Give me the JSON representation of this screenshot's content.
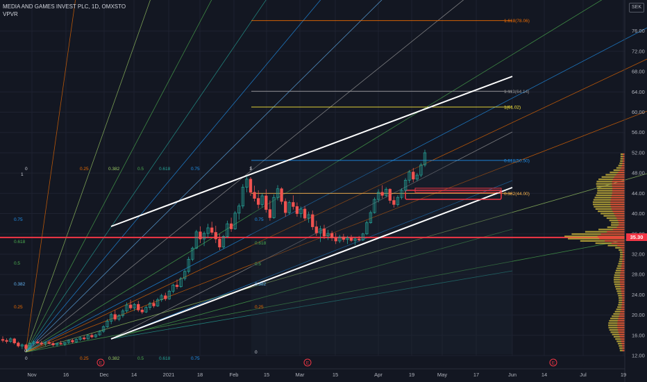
{
  "header": {
    "title": "MEDIA AND GAMES INVEST PLC, 1D, OMXSTO",
    "indicator": "VPVR",
    "currency": "SEK"
  },
  "last_price_label": "35.30",
  "colors": {
    "background": "#131722",
    "up": "#26a69a",
    "down": "#ef5350",
    "channel": "#ffffff",
    "support_line": "#f23645"
  },
  "chart_data": {
    "type": "candlestick",
    "y_axis": {
      "ticks": [
        "12.00",
        "16.00",
        "20.00",
        "24.00",
        "28.00",
        "32.00",
        "36.00",
        "40.00",
        "44.00",
        "48.00",
        "52.00",
        "56.00",
        "60.00",
        "64.00",
        "68.00",
        "72.00",
        "76.00"
      ],
      "range": [
        12,
        80
      ]
    },
    "x_axis": {
      "ticks": [
        "Nov",
        "16",
        "Dec",
        "14",
        "2021",
        "18",
        "Feb",
        "15",
        "Mar",
        "15",
        "Apr",
        "19",
        "May",
        "17",
        "Jun",
        "14",
        "Jul",
        "19"
      ]
    },
    "fib_levels": [
      {
        "label": "1.618(78.06)",
        "value": 78.06,
        "color": "#ef6c00"
      },
      {
        "label": "1.113(64.14)",
        "value": 64.14,
        "color": "#9e9e9e"
      },
      {
        "label": "1(61.02)",
        "value": 61.02,
        "color": "#ffeb3b"
      },
      {
        "label": "0.618(50.50)",
        "value": 50.5,
        "color": "#2196f3"
      },
      {
        "label": "0.382(44.00)",
        "value": 44.0,
        "color": "#ffb74d"
      }
    ],
    "gann_fan_left_labels": [
      "1",
      "0.75",
      "0.618",
      "0.5",
      "0.382",
      "0.25",
      "0"
    ],
    "gann_fan_top_labels": [
      "0",
      "0.25",
      "0.382",
      "0.5",
      "0.618",
      "0.75",
      "1"
    ],
    "gann_fan_bottom_labels": [
      "0",
      "0.25",
      "0.382",
      "0.5",
      "0.618",
      "0.75"
    ],
    "inner_box_labels": [
      "1",
      "0.75",
      "0.618",
      "0.5",
      "0.382",
      "0.25",
      "0"
    ],
    "horizontal_line": {
      "value": 35.3,
      "label": "35.30"
    },
    "earnings_markers": [
      "E",
      "E",
      "E",
      "E"
    ],
    "candles": [
      {
        "o": 15.2,
        "h": 15.8,
        "l": 14.6,
        "c": 15.0
      },
      {
        "o": 15.0,
        "h": 15.4,
        "l": 14.4,
        "c": 14.8
      },
      {
        "o": 14.8,
        "h": 15.6,
        "l": 14.5,
        "c": 15.3
      },
      {
        "o": 15.3,
        "h": 15.5,
        "l": 14.2,
        "c": 14.5
      },
      {
        "o": 14.5,
        "h": 14.8,
        "l": 13.6,
        "c": 13.9
      },
      {
        "o": 13.9,
        "h": 14.4,
        "l": 13.3,
        "c": 14.1
      },
      {
        "o": 14.1,
        "h": 14.3,
        "l": 13.0,
        "c": 13.4
      },
      {
        "o": 13.4,
        "h": 14.6,
        "l": 13.2,
        "c": 14.4
      },
      {
        "o": 14.4,
        "h": 15.0,
        "l": 14.0,
        "c": 14.7
      },
      {
        "o": 14.7,
        "h": 15.2,
        "l": 14.3,
        "c": 14.5
      },
      {
        "o": 14.5,
        "h": 14.9,
        "l": 14.0,
        "c": 14.3
      },
      {
        "o": 14.3,
        "h": 14.8,
        "l": 13.9,
        "c": 14.6
      },
      {
        "o": 14.6,
        "h": 15.0,
        "l": 14.2,
        "c": 14.4
      },
      {
        "o": 14.4,
        "h": 14.7,
        "l": 13.8,
        "c": 14.1
      },
      {
        "o": 14.1,
        "h": 14.6,
        "l": 13.8,
        "c": 14.4
      },
      {
        "o": 14.4,
        "h": 14.9,
        "l": 14.1,
        "c": 14.3
      },
      {
        "o": 14.3,
        "h": 14.7,
        "l": 13.9,
        "c": 14.6
      },
      {
        "o": 14.6,
        "h": 15.2,
        "l": 14.3,
        "c": 15.0
      },
      {
        "o": 15.0,
        "h": 15.3,
        "l": 14.4,
        "c": 14.7
      },
      {
        "o": 14.7,
        "h": 15.4,
        "l": 14.5,
        "c": 15.2
      },
      {
        "o": 15.2,
        "h": 15.8,
        "l": 14.9,
        "c": 15.5
      },
      {
        "o": 15.5,
        "h": 16.0,
        "l": 15.0,
        "c": 15.3
      },
      {
        "o": 15.3,
        "h": 16.2,
        "l": 15.1,
        "c": 16.0
      },
      {
        "o": 16.0,
        "h": 16.4,
        "l": 15.4,
        "c": 15.7
      },
      {
        "o": 15.7,
        "h": 16.3,
        "l": 15.5,
        "c": 16.1
      },
      {
        "o": 16.1,
        "h": 17.0,
        "l": 15.9,
        "c": 16.8
      },
      {
        "o": 16.8,
        "h": 18.0,
        "l": 16.5,
        "c": 17.7
      },
      {
        "o": 17.7,
        "h": 19.2,
        "l": 17.5,
        "c": 18.8
      },
      {
        "o": 18.8,
        "h": 20.5,
        "l": 18.2,
        "c": 20.1
      },
      {
        "o": 20.1,
        "h": 21.0,
        "l": 18.8,
        "c": 19.2
      },
      {
        "o": 19.2,
        "h": 20.2,
        "l": 18.8,
        "c": 19.9
      },
      {
        "o": 19.9,
        "h": 21.2,
        "l": 19.5,
        "c": 20.8
      },
      {
        "o": 20.8,
        "h": 22.5,
        "l": 20.5,
        "c": 22.0
      },
      {
        "o": 22.0,
        "h": 23.0,
        "l": 21.0,
        "c": 21.4
      },
      {
        "o": 21.4,
        "h": 22.4,
        "l": 20.8,
        "c": 22.1
      },
      {
        "o": 22.1,
        "h": 22.8,
        "l": 20.6,
        "c": 21.0
      },
      {
        "o": 21.0,
        "h": 21.6,
        "l": 20.2,
        "c": 20.6
      },
      {
        "o": 20.6,
        "h": 21.8,
        "l": 20.4,
        "c": 21.5
      },
      {
        "o": 21.5,
        "h": 22.6,
        "l": 21.0,
        "c": 22.3
      },
      {
        "o": 22.3,
        "h": 23.0,
        "l": 21.4,
        "c": 21.8
      },
      {
        "o": 21.8,
        "h": 23.4,
        "l": 21.6,
        "c": 23.0
      },
      {
        "o": 23.0,
        "h": 24.2,
        "l": 22.6,
        "c": 23.8
      },
      {
        "o": 23.8,
        "h": 24.4,
        "l": 22.8,
        "c": 23.2
      },
      {
        "o": 23.2,
        "h": 25.0,
        "l": 23.0,
        "c": 24.7
      },
      {
        "o": 24.7,
        "h": 26.2,
        "l": 24.3,
        "c": 25.9
      },
      {
        "o": 25.9,
        "h": 27.0,
        "l": 25.1,
        "c": 25.6
      },
      {
        "o": 25.6,
        "h": 27.5,
        "l": 25.4,
        "c": 27.2
      },
      {
        "o": 27.2,
        "h": 29.0,
        "l": 26.8,
        "c": 28.6
      },
      {
        "o": 28.6,
        "h": 31.5,
        "l": 28.2,
        "c": 31.0
      },
      {
        "o": 31.0,
        "h": 33.5,
        "l": 30.6,
        "c": 33.2
      },
      {
        "o": 33.2,
        "h": 36.8,
        "l": 33.0,
        "c": 36.4
      },
      {
        "o": 36.4,
        "h": 37.5,
        "l": 34.2,
        "c": 35.0
      },
      {
        "o": 35.0,
        "h": 36.5,
        "l": 33.6,
        "c": 36.1
      },
      {
        "o": 36.1,
        "h": 38.0,
        "l": 35.2,
        "c": 37.2
      },
      {
        "o": 37.2,
        "h": 38.4,
        "l": 35.8,
        "c": 36.3
      },
      {
        "o": 36.3,
        "h": 37.6,
        "l": 34.2,
        "c": 35.0
      },
      {
        "o": 35.0,
        "h": 36.0,
        "l": 32.8,
        "c": 33.4
      },
      {
        "o": 33.4,
        "h": 35.8,
        "l": 33.0,
        "c": 35.5
      },
      {
        "o": 35.5,
        "h": 38.6,
        "l": 35.2,
        "c": 38.0
      },
      {
        "o": 38.0,
        "h": 39.2,
        "l": 36.4,
        "c": 37.0
      },
      {
        "o": 37.0,
        "h": 40.5,
        "l": 36.8,
        "c": 40.1
      },
      {
        "o": 40.1,
        "h": 42.0,
        "l": 38.8,
        "c": 41.5
      },
      {
        "o": 41.5,
        "h": 45.8,
        "l": 41.0,
        "c": 45.2
      },
      {
        "o": 45.2,
        "h": 47.4,
        "l": 44.2,
        "c": 46.8
      },
      {
        "o": 46.8,
        "h": 47.2,
        "l": 43.5,
        "c": 44.2
      },
      {
        "o": 44.2,
        "h": 45.5,
        "l": 42.4,
        "c": 43.0
      },
      {
        "o": 43.0,
        "h": 44.6,
        "l": 41.0,
        "c": 41.8
      },
      {
        "o": 41.8,
        "h": 44.0,
        "l": 41.2,
        "c": 43.5
      },
      {
        "o": 43.5,
        "h": 44.8,
        "l": 40.2,
        "c": 40.8
      },
      {
        "o": 40.8,
        "h": 42.6,
        "l": 38.6,
        "c": 39.2
      },
      {
        "o": 39.2,
        "h": 43.8,
        "l": 39.0,
        "c": 43.2
      },
      {
        "o": 43.2,
        "h": 45.6,
        "l": 42.6,
        "c": 44.9
      },
      {
        "o": 44.9,
        "h": 45.2,
        "l": 41.8,
        "c": 42.4
      },
      {
        "o": 42.4,
        "h": 43.0,
        "l": 39.4,
        "c": 40.2
      },
      {
        "o": 40.2,
        "h": 42.6,
        "l": 39.8,
        "c": 42.2
      },
      {
        "o": 42.2,
        "h": 43.6,
        "l": 40.8,
        "c": 41.4
      },
      {
        "o": 41.4,
        "h": 42.2,
        "l": 39.4,
        "c": 40.0
      },
      {
        "o": 40.0,
        "h": 41.4,
        "l": 39.2,
        "c": 40.9
      },
      {
        "o": 40.9,
        "h": 41.5,
        "l": 38.6,
        "c": 39.1
      },
      {
        "o": 39.1,
        "h": 40.4,
        "l": 38.2,
        "c": 39.8
      },
      {
        "o": 39.8,
        "h": 40.6,
        "l": 36.8,
        "c": 37.4
      },
      {
        "o": 37.4,
        "h": 38.6,
        "l": 35.6,
        "c": 36.2
      },
      {
        "o": 36.2,
        "h": 37.6,
        "l": 34.4,
        "c": 37.0
      },
      {
        "o": 37.0,
        "h": 37.8,
        "l": 35.0,
        "c": 35.6
      },
      {
        "o": 35.6,
        "h": 36.8,
        "l": 34.8,
        "c": 36.1
      },
      {
        "o": 36.1,
        "h": 36.6,
        "l": 34.6,
        "c": 35.2
      },
      {
        "o": 35.2,
        "h": 36.2,
        "l": 34.0,
        "c": 34.6
      },
      {
        "o": 34.6,
        "h": 35.8,
        "l": 34.2,
        "c": 35.4
      },
      {
        "o": 35.4,
        "h": 36.0,
        "l": 34.4,
        "c": 34.9
      },
      {
        "o": 34.9,
        "h": 35.6,
        "l": 34.0,
        "c": 35.2
      },
      {
        "o": 35.2,
        "h": 35.8,
        "l": 34.4,
        "c": 34.7
      },
      {
        "o": 34.7,
        "h": 35.4,
        "l": 33.8,
        "c": 35.0
      },
      {
        "o": 35.0,
        "h": 35.6,
        "l": 34.5,
        "c": 34.8
      },
      {
        "o": 34.8,
        "h": 36.2,
        "l": 34.6,
        "c": 36.0
      },
      {
        "o": 36.0,
        "h": 38.6,
        "l": 35.8,
        "c": 38.2
      },
      {
        "o": 38.2,
        "h": 40.6,
        "l": 38.0,
        "c": 40.2
      },
      {
        "o": 40.2,
        "h": 43.2,
        "l": 40.0,
        "c": 42.8
      },
      {
        "o": 42.8,
        "h": 44.8,
        "l": 42.2,
        "c": 44.2
      },
      {
        "o": 44.2,
        "h": 45.6,
        "l": 43.0,
        "c": 43.6
      },
      {
        "o": 43.6,
        "h": 45.2,
        "l": 43.2,
        "c": 44.8
      },
      {
        "o": 44.8,
        "h": 45.0,
        "l": 42.0,
        "c": 42.6
      },
      {
        "o": 42.6,
        "h": 43.4,
        "l": 41.2,
        "c": 41.8
      },
      {
        "o": 41.8,
        "h": 43.6,
        "l": 41.4,
        "c": 43.2
      },
      {
        "o": 43.2,
        "h": 45.0,
        "l": 42.8,
        "c": 44.6
      },
      {
        "o": 44.6,
        "h": 47.0,
        "l": 44.2,
        "c": 46.6
      },
      {
        "o": 46.6,
        "h": 48.6,
        "l": 46.0,
        "c": 48.2
      },
      {
        "o": 48.2,
        "h": 49.0,
        "l": 46.2,
        "c": 46.8
      },
      {
        "o": 46.8,
        "h": 48.0,
        "l": 46.4,
        "c": 47.6
      },
      {
        "o": 47.6,
        "h": 50.0,
        "l": 47.2,
        "c": 49.6
      },
      {
        "o": 49.6,
        "h": 52.6,
        "l": 49.2,
        "c": 52.0
      }
    ]
  }
}
